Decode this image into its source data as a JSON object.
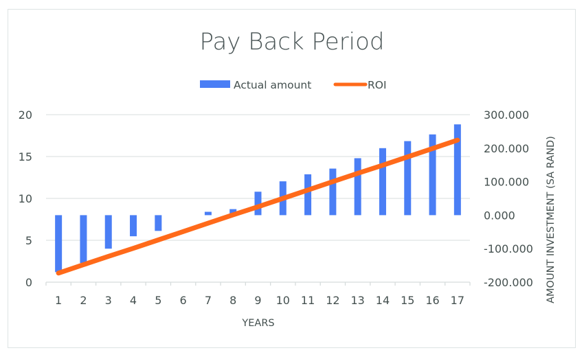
{
  "chart_data": {
    "type": "bar+line",
    "title": "Pay Back Period",
    "xlabel": "YEARS",
    "ylabel_left": "",
    "ylabel_right": "AMOUNT INVESTMENT (SA RAND)",
    "categories": [
      "1",
      "2",
      "3",
      "4",
      "5",
      "6",
      "7",
      "8",
      "9",
      "10",
      "11",
      "12",
      "13",
      "14",
      "15",
      "16",
      "17"
    ],
    "series": [
      {
        "name": "Actual amount",
        "type": "bar",
        "axis": "right",
        "color": "#4A7EF5",
        "values": [
          -170,
          -143,
          -100,
          -63,
          -47,
          0,
          10,
          18,
          70,
          101,
          122,
          139,
          170,
          200,
          221,
          241,
          271
        ]
      },
      {
        "name": "ROI",
        "type": "line",
        "axis": "right",
        "color": "#FF6A1A",
        "values": [
          -173,
          -148,
          -123,
          -99,
          -74,
          -49,
          -24,
          1,
          25,
          50,
          75,
          100,
          125,
          149,
          174,
          199,
          224
        ]
      }
    ],
    "left_axis": {
      "ticks": [
        0,
        5,
        10,
        15,
        20
      ],
      "tick_labels": [
        "0",
        "5",
        "10",
        "15",
        "20"
      ],
      "ylim": [
        0,
        20
      ]
    },
    "right_axis": {
      "ticks": [
        -200,
        -100,
        0,
        100,
        200,
        300
      ],
      "tick_labels": [
        "-200.000",
        "-100.000",
        "0.000",
        "100.000",
        "200.000",
        "300.000"
      ],
      "ylim": [
        -200,
        300
      ]
    },
    "grid": true,
    "legend_position": "top"
  },
  "legend": {
    "items": [
      {
        "label": "Actual amount",
        "color": "#4A7EF5",
        "kind": "bar"
      },
      {
        "label": "ROI",
        "color": "#FF6A1A",
        "kind": "line"
      }
    ]
  },
  "colors": {
    "grid": "#dfe4e4",
    "axis": "#d6dcdc",
    "text": "#44504f",
    "frame": "#dde3e3"
  }
}
